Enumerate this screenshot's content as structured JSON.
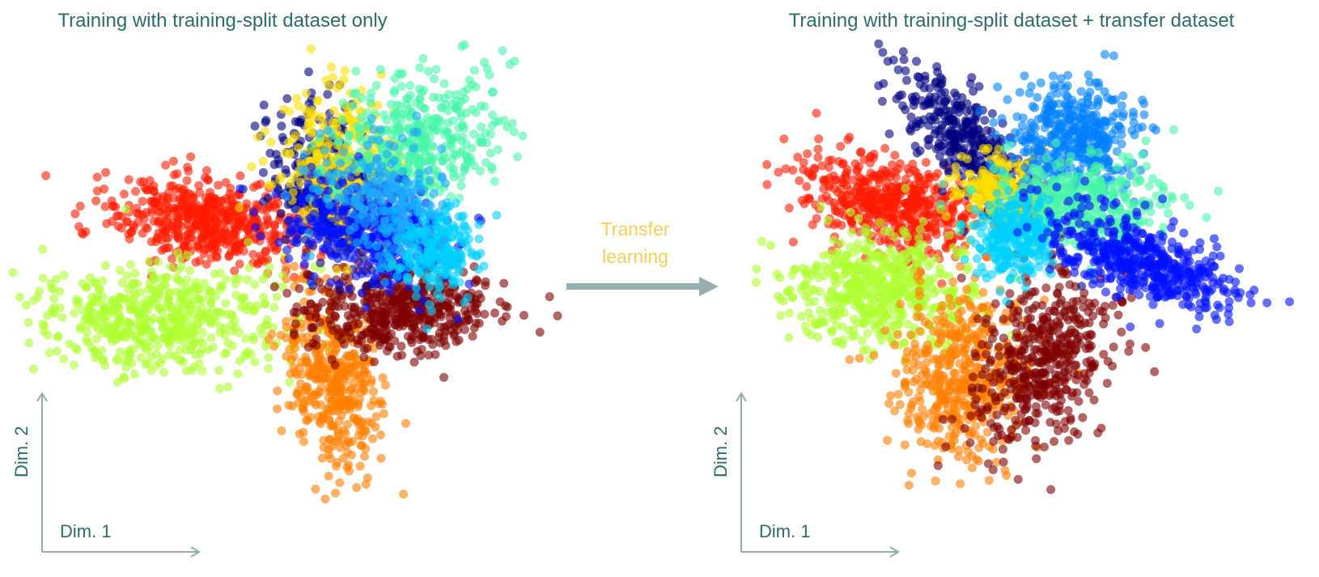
{
  "chart_data": [
    {
      "type": "scatter",
      "title": "Training with training-split dataset only",
      "xlabel": "Dim. 1",
      "ylabel": "Dim. 2",
      "series": [
        {
          "color": "#ff1a00",
          "center": [
            -4.2,
            2.0
          ],
          "spread": [
            1.9,
            0.85
          ],
          "rotation": -8,
          "n": 520
        },
        {
          "color": "#adff2f",
          "center": [
            -6.2,
            -1.9
          ],
          "spread": [
            2.4,
            1.05
          ],
          "rotation": 0,
          "n": 520
        },
        {
          "color": "#ff7f00",
          "center": [
            0.8,
            -4.2
          ],
          "spread": [
            0.9,
            1.8
          ],
          "rotation": 10,
          "n": 430
        },
        {
          "color": "#7f0000",
          "center": [
            3.6,
            -1.5
          ],
          "spread": [
            1.9,
            0.9
          ],
          "rotation": 0,
          "n": 480
        },
        {
          "color": "#000080",
          "center": [
            0.6,
            3.4
          ],
          "spread": [
            1.0,
            1.7
          ],
          "rotation": 20,
          "n": 330
        },
        {
          "color": "#ffe000",
          "center": [
            1.2,
            4.2
          ],
          "spread": [
            1.2,
            1.6
          ],
          "rotation": 10,
          "n": 330
        },
        {
          "color": "#48f5a8",
          "center": [
            4.2,
            5.1
          ],
          "spread": [
            1.8,
            1.3
          ],
          "rotation": 20,
          "n": 430
        },
        {
          "color": "#0010ff",
          "center": [
            2.2,
            1.6
          ],
          "spread": [
            1.6,
            1.0
          ],
          "rotation": -15,
          "n": 420
        },
        {
          "color": "#00d0ff",
          "center": [
            4.8,
            1.0
          ],
          "spread": [
            1.0,
            0.9
          ],
          "rotation": 0,
          "n": 260
        },
        {
          "color": "#1da8ff",
          "center": [
            2.6,
            3.0
          ],
          "spread": [
            1.5,
            1.2
          ],
          "rotation": 0,
          "n": 200
        }
      ]
    },
    {
      "type": "scatter",
      "title": "Training with training-split dataset + transfer dataset",
      "xlabel": "Dim. 1",
      "ylabel": "Dim. 2",
      "series": [
        {
          "color": "#ff1a00",
          "center": [
            -4.3,
            2.6
          ],
          "spread": [
            1.8,
            0.9
          ],
          "rotation": -18,
          "n": 520
        },
        {
          "color": "#adff2f",
          "center": [
            -4.8,
            -0.8
          ],
          "spread": [
            2.0,
            1.2
          ],
          "rotation": 0,
          "n": 520
        },
        {
          "color": "#ff7f00",
          "center": [
            -1.6,
            -4.2
          ],
          "spread": [
            1.3,
            1.7
          ],
          "rotation": 0,
          "n": 460
        },
        {
          "color": "#7f0000",
          "center": [
            1.8,
            -3.5
          ],
          "spread": [
            1.2,
            1.8
          ],
          "rotation": -25,
          "n": 460
        },
        {
          "color": "#000080",
          "center": [
            -1.2,
            5.0
          ],
          "spread": [
            0.7,
            2.0
          ],
          "rotation": 40,
          "n": 380
        },
        {
          "color": "#ffe000",
          "center": [
            0.2,
            3.3
          ],
          "spread": [
            0.9,
            0.7
          ],
          "rotation": 0,
          "n": 220
        },
        {
          "color": "#0080ff",
          "center": [
            2.9,
            5.4
          ],
          "spread": [
            1.3,
            1.1
          ],
          "rotation": 0,
          "n": 420
        },
        {
          "color": "#48f5a8",
          "center": [
            3.2,
            2.6
          ],
          "spread": [
            1.7,
            0.9
          ],
          "rotation": 0,
          "n": 420
        },
        {
          "color": "#00d0ff",
          "center": [
            0.6,
            1.4
          ],
          "spread": [
            0.8,
            0.9
          ],
          "rotation": 0,
          "n": 260
        },
        {
          "color": "#0010ff",
          "center": [
            5.6,
            0.4
          ],
          "spread": [
            2.0,
            0.75
          ],
          "rotation": -22,
          "n": 500
        }
      ]
    }
  ],
  "arrow": {
    "label_line1": "Transfer",
    "label_line2": "learning",
    "color": "#94afad",
    "label_color": "#f5cf5a"
  }
}
